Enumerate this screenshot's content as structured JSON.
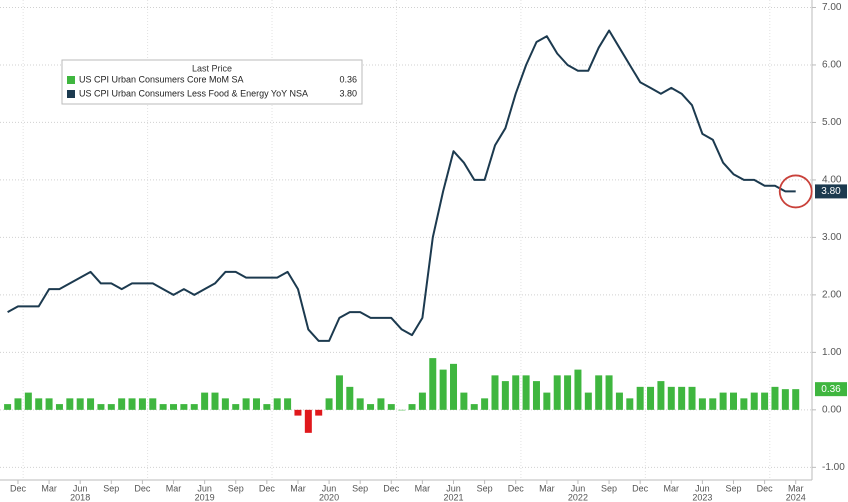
{
  "chart_data": {
    "type": "combo",
    "categories": [
      null,
      "Dec",
      null,
      null,
      "Mar",
      null,
      null,
      "Jun",
      null,
      null,
      "Sep",
      null,
      null,
      "Dec",
      null,
      null,
      "Mar",
      null,
      null,
      "Jun",
      null,
      null,
      "Sep",
      null,
      null,
      "Dec",
      null,
      null,
      "Mar",
      null,
      null,
      "Jun",
      null,
      null,
      "Sep",
      null,
      null,
      "Dec",
      null,
      null,
      "Mar",
      null,
      null,
      "Jun",
      null,
      null,
      "Sep",
      null,
      null,
      "Dec",
      null,
      null,
      "Mar",
      null,
      null,
      "Jun",
      null,
      null,
      "Sep",
      null,
      null,
      "Dec",
      null,
      null,
      "Mar",
      null,
      null,
      "Jun",
      null,
      null,
      "Sep",
      null,
      null,
      "Dec",
      null,
      null,
      "Mar"
    ],
    "category_years": [
      null,
      null,
      null,
      null,
      null,
      null,
      null,
      "2018",
      null,
      null,
      null,
      null,
      null,
      null,
      null,
      null,
      null,
      null,
      null,
      "2019",
      null,
      null,
      null,
      null,
      null,
      null,
      null,
      null,
      null,
      null,
      null,
      "2020",
      null,
      null,
      null,
      null,
      null,
      null,
      null,
      null,
      null,
      null,
      null,
      "2021",
      null,
      null,
      null,
      null,
      null,
      null,
      null,
      null,
      null,
      null,
      null,
      "2022",
      null,
      null,
      null,
      null,
      null,
      null,
      null,
      null,
      null,
      null,
      null,
      "2023",
      null,
      null,
      null,
      null,
      null,
      null,
      null,
      null,
      "2024"
    ],
    "legend_title": "Last Price",
    "series": [
      {
        "name": "US CPI Urban Consumers Core MoM SA",
        "type": "bar",
        "color": "#3fb63f",
        "negative_color": "#e0181c",
        "last_label": "0.36",
        "values": [
          0.1,
          0.2,
          0.3,
          0.2,
          0.2,
          0.1,
          0.2,
          0.2,
          0.2,
          0.1,
          0.1,
          0.2,
          0.2,
          0.2,
          0.2,
          0.1,
          0.1,
          0.1,
          0.1,
          0.3,
          0.3,
          0.2,
          0.1,
          0.2,
          0.2,
          0.1,
          0.2,
          0.2,
          -0.1,
          -0.4,
          -0.1,
          0.2,
          0.6,
          0.4,
          0.2,
          0.1,
          0.2,
          0.1,
          0.0,
          0.1,
          0.3,
          0.9,
          0.7,
          0.8,
          0.3,
          0.1,
          0.2,
          0.6,
          0.5,
          0.6,
          0.6,
          0.5,
          0.3,
          0.6,
          0.6,
          0.7,
          0.3,
          0.6,
          0.6,
          0.3,
          0.2,
          0.4,
          0.4,
          0.5,
          0.4,
          0.4,
          0.4,
          0.2,
          0.2,
          0.3,
          0.3,
          0.2,
          0.3,
          0.3,
          0.4,
          0.36,
          0.36
        ]
      },
      {
        "name": "US CPI Urban Consumers Less Food & Energy YoY NSA",
        "type": "line",
        "color": "#1c3a4f",
        "last_label": "3.80",
        "values": [
          1.7,
          1.8,
          1.8,
          1.8,
          2.1,
          2.1,
          2.2,
          2.3,
          2.4,
          2.2,
          2.2,
          2.1,
          2.2,
          2.2,
          2.2,
          2.1,
          2.0,
          2.1,
          2.0,
          2.1,
          2.2,
          2.4,
          2.4,
          2.3,
          2.3,
          2.3,
          2.3,
          2.4,
          2.1,
          1.4,
          1.2,
          1.2,
          1.6,
          1.7,
          1.7,
          1.6,
          1.6,
          1.6,
          1.4,
          1.3,
          1.6,
          3.0,
          3.8,
          4.5,
          4.3,
          4.0,
          4.0,
          4.6,
          4.9,
          5.5,
          6.0,
          6.4,
          6.5,
          6.2,
          6.0,
          5.9,
          5.9,
          6.3,
          6.6,
          6.3,
          6.0,
          5.7,
          5.6,
          5.5,
          5.6,
          5.5,
          5.3,
          4.8,
          4.7,
          4.3,
          4.1,
          4.0,
          4.0,
          3.9,
          3.9,
          3.8,
          3.8
        ]
      }
    ],
    "ylim": [
      -1.29,
      7.13
    ],
    "yticks": [
      {
        "value": -1,
        "label": "-1.00"
      },
      {
        "value": 0,
        "label": "0.00"
      },
      {
        "value": 1,
        "label": "1.00"
      },
      {
        "value": 2,
        "label": "2.00"
      },
      {
        "value": 3,
        "label": "3.00"
      },
      {
        "value": 4,
        "label": "4.00"
      },
      {
        "value": 5,
        "label": "5.00"
      },
      {
        "value": 6,
        "label": "6.00"
      },
      {
        "value": 7,
        "label": "7.00"
      }
    ],
    "grid": true
  }
}
